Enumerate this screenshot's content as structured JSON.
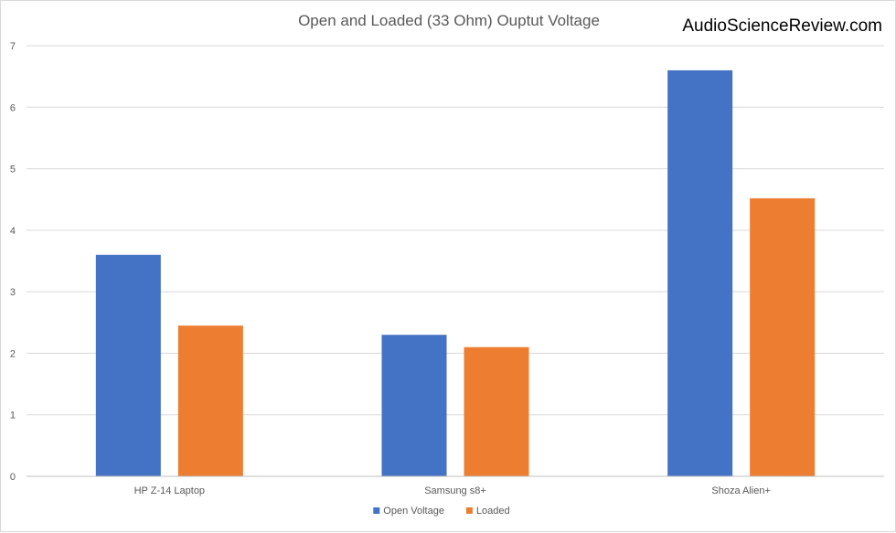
{
  "watermark": "AudioScienceReview.com",
  "chart_data": {
    "type": "bar",
    "title": "Open and Loaded (33 Ohm) Ouptut Voltage",
    "xlabel": "",
    "ylabel": "",
    "categories": [
      "HP Z-14 Laptop",
      "Samsung s8+",
      "Shoza Alien+"
    ],
    "series": [
      {
        "name": "Open Voltage",
        "color": "#4472C4",
        "values": [
          3.6,
          2.3,
          6.6
        ]
      },
      {
        "name": "Loaded",
        "color": "#ED7D31",
        "values": [
          2.45,
          2.1,
          4.52
        ]
      }
    ],
    "ylim": [
      0,
      7
    ],
    "yticks": [
      "0",
      "1",
      "2",
      "3",
      "4",
      "5",
      "6",
      "7"
    ],
    "grid": true,
    "legend_position": "bottom"
  }
}
